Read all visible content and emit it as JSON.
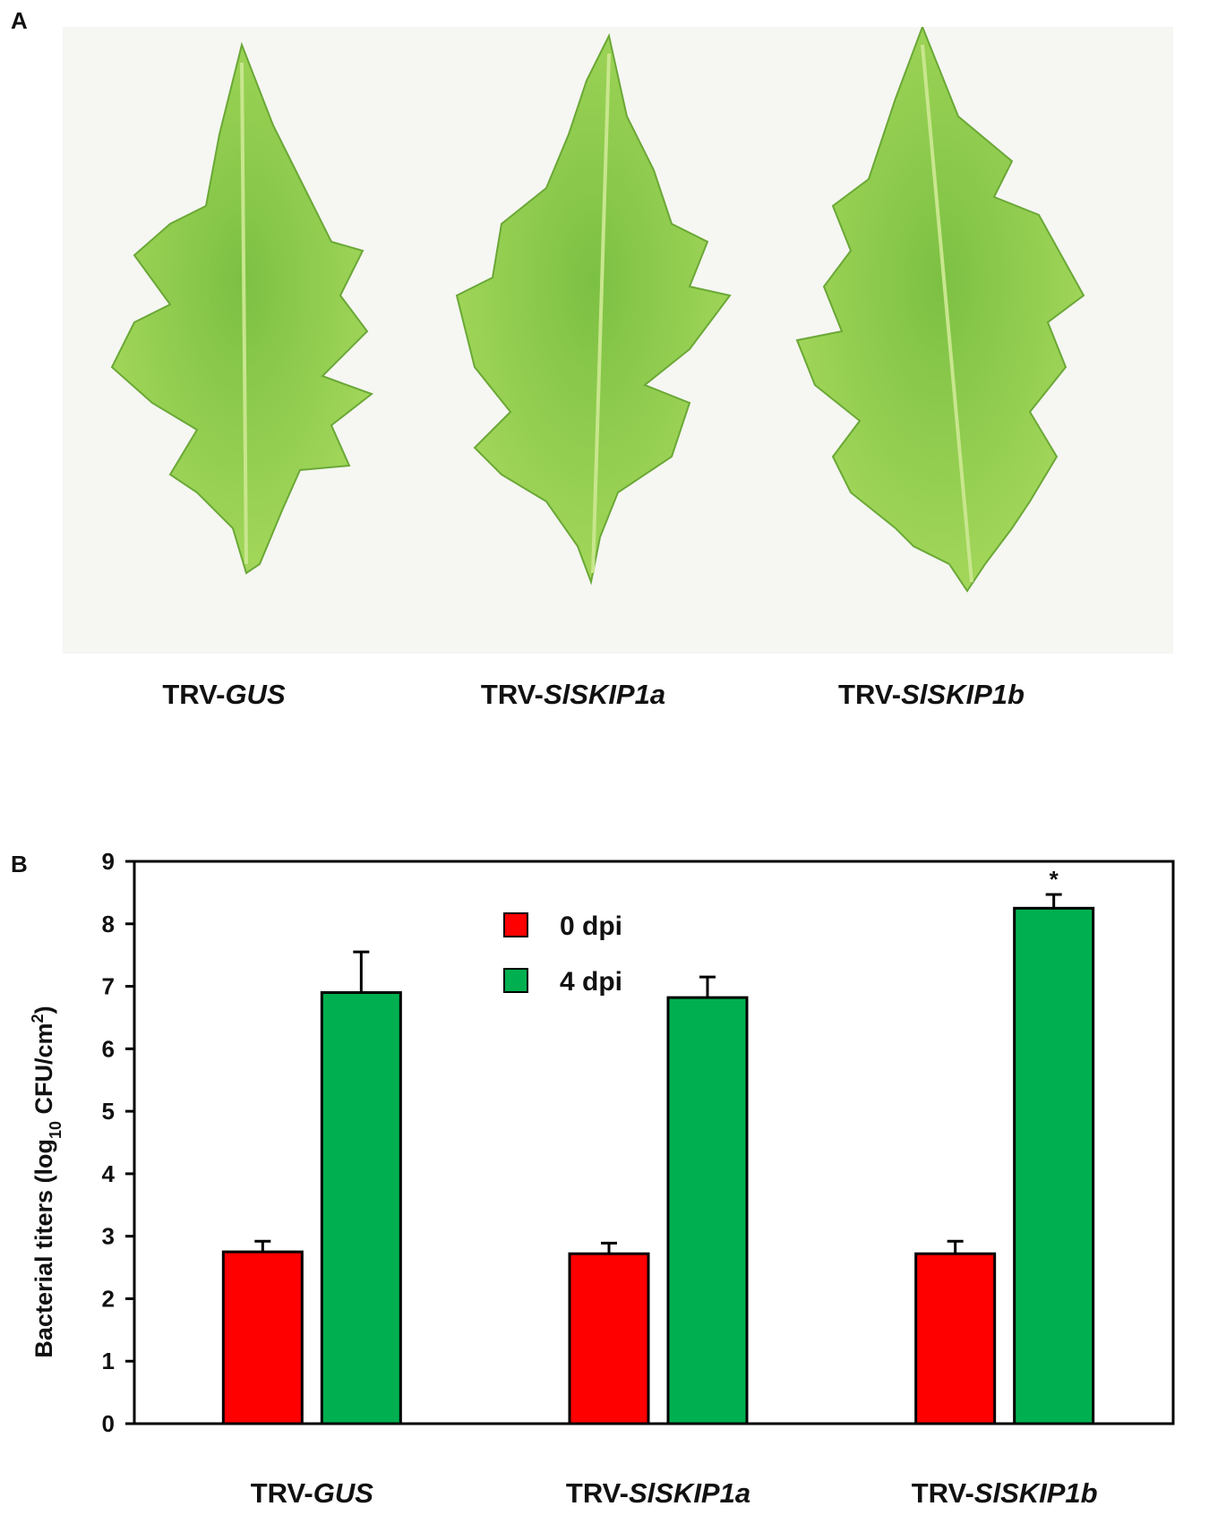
{
  "panels": {
    "a_label": "A",
    "b_label": "B"
  },
  "photo": {
    "leaves": [
      {
        "prefix": "TRV-",
        "gene": "GUS"
      },
      {
        "prefix": "TRV-",
        "gene": "SlSKIP1a"
      },
      {
        "prefix": "TRV-",
        "gene": "SlSKIP1b"
      }
    ]
  },
  "colors": {
    "leaf_light": "#8fcf4e",
    "leaf_dark": "#5fae2e",
    "series_0dpi": "#ff0000",
    "series_4dpi": "#00b050"
  },
  "chart_data": {
    "type": "bar",
    "categories": [
      {
        "prefix": "TRV-",
        "gene": "GUS"
      },
      {
        "prefix": "TRV-",
        "gene": "SlSKIP1a"
      },
      {
        "prefix": "TRV-",
        "gene": "SlSKIP1b"
      }
    ],
    "series": [
      {
        "name": "0 dpi",
        "values": [
          2.75,
          2.72,
          2.72
        ],
        "errors": [
          0.17,
          0.17,
          0.2
        ],
        "color": "#ff0000"
      },
      {
        "name": "4 dpi",
        "values": [
          6.9,
          6.82,
          8.25
        ],
        "errors": [
          0.65,
          0.33,
          0.22
        ],
        "color": "#00b050"
      }
    ],
    "annotations": [
      {
        "category_index": 2,
        "series_index": 1,
        "text": "*"
      }
    ],
    "ylabel_main": "Bacterial titers (log",
    "ylabel_sub": "10",
    "ylabel_unit": " CFU/cm",
    "ylabel_sup": "2",
    "ylabel_close": ")",
    "ylim": [
      0,
      9
    ],
    "yticks": [
      0,
      1,
      2,
      3,
      4,
      5,
      6,
      7,
      8,
      9
    ],
    "legend_position": "top-center",
    "grid": false
  }
}
